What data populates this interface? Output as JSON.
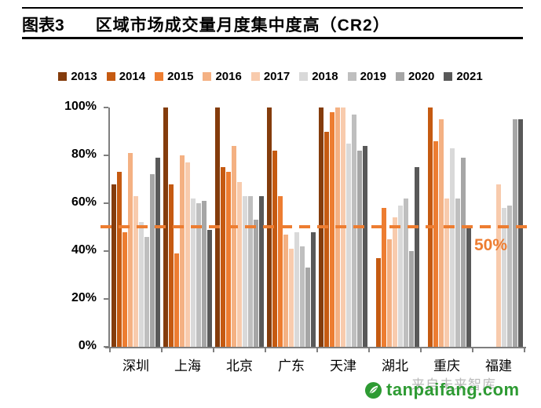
{
  "header": {
    "label": "图表3",
    "title": "区域市场成交量月度集中度高（CR2）"
  },
  "chart_data": {
    "type": "bar",
    "title": "区域市场成交量月度集中度高（CR2）",
    "categories": [
      "深圳",
      "上海",
      "北京",
      "广东",
      "天津",
      "湖北",
      "重庆",
      "福建"
    ],
    "series": [
      {
        "name": "2013",
        "color": "#843C0C",
        "values": [
          68,
          100,
          100,
          100,
          100,
          null,
          null,
          null
        ]
      },
      {
        "name": "2014",
        "color": "#C55A11",
        "values": [
          73,
          68,
          75,
          82,
          90,
          37,
          100,
          null
        ]
      },
      {
        "name": "2015",
        "color": "#ED7D31",
        "values": [
          48,
          39,
          73,
          63,
          98,
          58,
          86,
          null
        ]
      },
      {
        "name": "2016",
        "color": "#F4B183",
        "values": [
          81,
          80,
          84,
          47,
          100,
          45,
          95,
          null
        ]
      },
      {
        "name": "2017",
        "color": "#F8CBAD",
        "values": [
          63,
          77,
          69,
          41,
          100,
          54,
          62,
          68
        ]
      },
      {
        "name": "2018",
        "color": "#D9D9D9",
        "values": [
          52,
          62,
          63,
          48,
          85,
          59,
          83,
          58
        ]
      },
      {
        "name": "2019",
        "color": "#BFBFBF",
        "values": [
          46,
          60,
          63,
          42,
          97,
          62,
          62,
          59
        ]
      },
      {
        "name": "2020",
        "color": "#A6A6A6",
        "values": [
          72,
          61,
          53,
          33,
          82,
          40,
          79,
          95
        ]
      },
      {
        "name": "2021",
        "color": "#595959",
        "values": [
          79,
          49,
          63,
          48,
          84,
          75,
          50,
          95
        ]
      }
    ],
    "ylim": [
      0,
      100
    ],
    "yticks": [
      "0%",
      "20%",
      "40%",
      "60%",
      "80%",
      "100%"
    ],
    "grid": false,
    "legend_position": "top",
    "reference_line": {
      "value": 50,
      "label": "50%",
      "color": "#ED7D31",
      "style": "dashed"
    }
  },
  "watermark": {
    "faint_text": "来自未来智库",
    "site_text": "tanpaifang.com",
    "site_color": "#2E9B33"
  }
}
